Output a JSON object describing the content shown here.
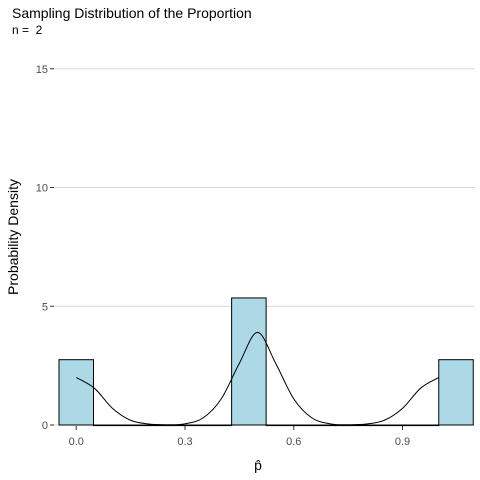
{
  "chart_data": {
    "type": "bar",
    "title": "Sampling Distribution of the Proportion",
    "subtitle": "n =  2",
    "xlabel": "p̂",
    "ylabel": "Probability Density",
    "xlim": [
      -0.1,
      1.1
    ],
    "ylim": [
      0,
      16
    ],
    "x_ticks": [
      0.0,
      0.3,
      0.6,
      0.9
    ],
    "x_tick_labels": [
      "0.0",
      "0.3",
      "0.6",
      "0.9"
    ],
    "y_ticks": [
      0,
      5,
      10,
      15
    ],
    "y_tick_labels": [
      "0",
      "5",
      "10",
      "15"
    ],
    "grid": "horizontal",
    "bar_width": 0.0952,
    "histogram": {
      "fill": "#ADD8E6",
      "outline": "#000000",
      "bin_centers": [
        0.0,
        0.0952,
        0.1905,
        0.2857,
        0.381,
        0.4762,
        0.5714,
        0.6667,
        0.7619,
        0.8571,
        0.9524,
        1.0476
      ],
      "values": [
        2.75,
        0.0,
        0.0,
        0.0,
        0.0,
        5.35,
        0.0,
        0.0,
        0.0,
        0.0,
        0.0,
        2.75
      ]
    },
    "density": {
      "color": "#000000",
      "x": [
        0.0,
        0.05,
        0.1,
        0.15,
        0.2,
        0.25,
        0.3,
        0.35,
        0.4,
        0.45,
        0.5,
        0.55,
        0.6,
        0.65,
        0.7,
        0.75,
        0.8,
        0.85,
        0.9,
        0.95,
        1.0
      ],
      "y": [
        2.0,
        1.55,
        0.7,
        0.2,
        0.04,
        0.01,
        0.05,
        0.3,
        1.1,
        2.6,
        3.9,
        2.6,
        1.1,
        0.3,
        0.05,
        0.01,
        0.04,
        0.2,
        0.7,
        1.55,
        2.0
      ]
    }
  }
}
